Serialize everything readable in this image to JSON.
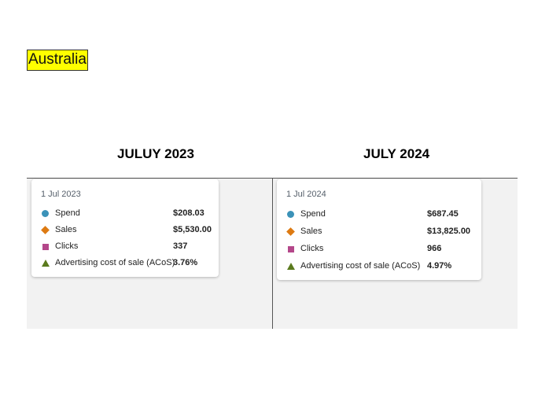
{
  "region": "Australia",
  "columns": [
    {
      "heading": "JULUY 2023",
      "tooltip": {
        "date": "1 Jul 2023",
        "rows": [
          {
            "name": "Spend",
            "value": "$208.03",
            "marker": "circle",
            "color": "#3b92b8"
          },
          {
            "name": "Sales",
            "value": "$5,530.00",
            "marker": "diamond",
            "color": "#dd7a12"
          },
          {
            "name": "Clicks",
            "value": "337",
            "marker": "square",
            "color": "#b4478a"
          },
          {
            "name": "Advertising cost of sale (ACoS)",
            "value": "3.76%",
            "marker": "triangle",
            "color": "#5a7a1d"
          }
        ]
      }
    },
    {
      "heading": "JULY 2024",
      "tooltip": {
        "date": "1 Jul 2024",
        "rows": [
          {
            "name": "Spend",
            "value": "$687.45",
            "marker": "circle",
            "color": "#3b92b8"
          },
          {
            "name": "Sales",
            "value": "$13,825.00",
            "marker": "diamond",
            "color": "#dd7a12"
          },
          {
            "name": "Clicks",
            "value": "966",
            "marker": "square",
            "color": "#b4478a"
          },
          {
            "name": "Advertising cost of sale (ACoS)",
            "value": "4.97%",
            "marker": "triangle",
            "color": "#5a7a1d"
          }
        ]
      }
    }
  ]
}
